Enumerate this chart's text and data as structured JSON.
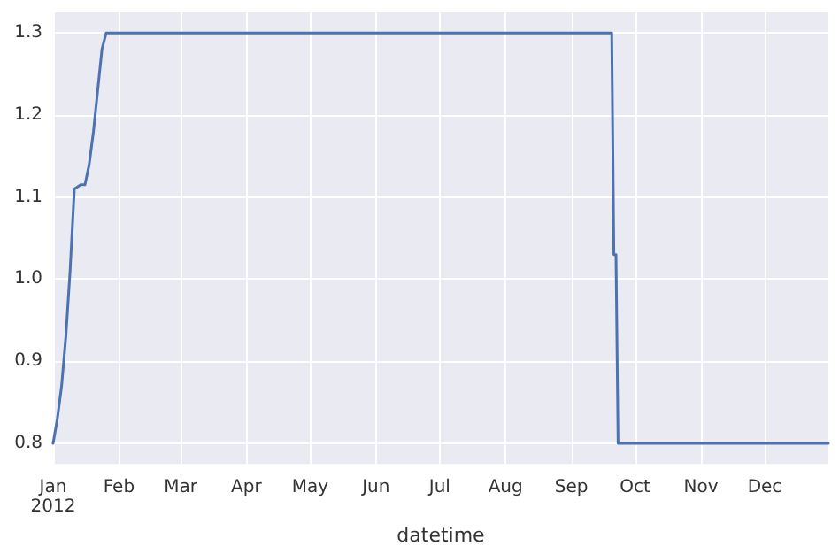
{
  "chart_data": {
    "type": "line",
    "xlabel": "datetime",
    "x": [
      "2012-01-01",
      "2012-01-03",
      "2012-01-05",
      "2012-01-07",
      "2012-01-09",
      "2012-01-11",
      "2012-01-14",
      "2012-01-16",
      "2012-01-18",
      "2012-01-20",
      "2012-01-22",
      "2012-01-24",
      "2012-01-26",
      "2012-09-20",
      "2012-09-21",
      "2012-09-22",
      "2012-09-23",
      "2012-12-31"
    ],
    "series": [
      {
        "color": "#4c72b0",
        "values": [
          0.8,
          0.83,
          0.87,
          0.93,
          1.01,
          1.11,
          1.115,
          1.115,
          1.14,
          1.18,
          1.23,
          1.28,
          1.3,
          1.3,
          1.03,
          1.03,
          0.8,
          0.8
        ]
      }
    ],
    "xlim": [
      "2012-01-01",
      "2012-12-31"
    ],
    "xticks": [
      {
        "value": "2012-01-01",
        "label": "Jan\n2012"
      },
      {
        "value": "2012-02-01",
        "label": "Feb"
      },
      {
        "value": "2012-03-01",
        "label": "Mar"
      },
      {
        "value": "2012-04-01",
        "label": "Apr"
      },
      {
        "value": "2012-05-01",
        "label": "May"
      },
      {
        "value": "2012-06-01",
        "label": "Jun"
      },
      {
        "value": "2012-07-01",
        "label": "Jul"
      },
      {
        "value": "2012-08-01",
        "label": "Aug"
      },
      {
        "value": "2012-09-01",
        "label": "Sep"
      },
      {
        "value": "2012-10-01",
        "label": "Oct"
      },
      {
        "value": "2012-11-01",
        "label": "Nov"
      },
      {
        "value": "2012-12-01",
        "label": "Dec"
      }
    ],
    "ylim": [
      0.775,
      1.325
    ],
    "yticks": [
      {
        "value": 0.8,
        "label": "0.8"
      },
      {
        "value": 0.9,
        "label": "0.9"
      },
      {
        "value": 1.0,
        "label": "1.0"
      },
      {
        "value": 1.1,
        "label": "1.1"
      },
      {
        "value": 1.2,
        "label": "1.2"
      },
      {
        "value": 1.3,
        "label": "1.3"
      }
    ],
    "grid": true,
    "marker": "none",
    "line_style": "solid"
  }
}
